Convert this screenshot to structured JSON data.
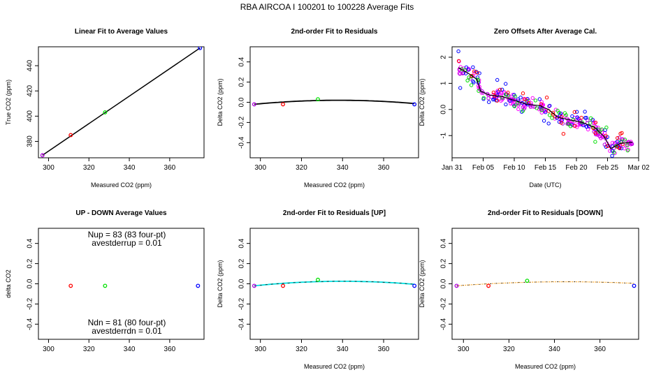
{
  "main_title": "RBA   AIRCOA I   100201 to 100228   Average Fits",
  "colors": {
    "purple": "#b000e0",
    "red": "#ff0000",
    "green": "#00e000",
    "blue": "#0000ff",
    "magenta": "#ff00ff",
    "cyan": "#00e0e0",
    "orange": "#ff9900",
    "black": "#000000"
  },
  "chart_data": [
    {
      "id": "p1",
      "type": "scatter",
      "title": "Linear Fit to Average Values",
      "xlabel": "Measured CO2 (ppm)",
      "ylabel": "True CO2 (ppm)",
      "xlim": [
        295,
        377
      ],
      "ylim": [
        367,
        455
      ],
      "xticks": [
        300,
        320,
        340,
        360
      ],
      "yticks": [
        380,
        400,
        420,
        440
      ],
      "points": [
        {
          "x": 297,
          "y": 369,
          "color": "#b000e0"
        },
        {
          "x": 311,
          "y": 385,
          "color": "#ff0000"
        },
        {
          "x": 328,
          "y": 403,
          "color": "#00e000"
        },
        {
          "x": 375,
          "y": 454,
          "color": "#0000ff"
        }
      ],
      "fit": {
        "type": "linear",
        "x": [
          297,
          375
        ],
        "y": [
          369,
          454
        ],
        "color": "#000000"
      }
    },
    {
      "id": "p2",
      "type": "scatter",
      "title": "2nd-order Fit to Residuals",
      "xlabel": "Measured CO2 (ppm)",
      "ylabel": "Delta CO2 (ppm)",
      "xlim": [
        295,
        377
      ],
      "ylim": [
        -0.55,
        0.55
      ],
      "xticks": [
        300,
        320,
        340,
        360
      ],
      "yticks": [
        -0.4,
        -0.2,
        0.0,
        0.2,
        0.4
      ],
      "points": [
        {
          "x": 297,
          "y": -0.02,
          "color": "#b000e0"
        },
        {
          "x": 311,
          "y": -0.02,
          "color": "#ff0000"
        },
        {
          "x": 328,
          "y": 0.03,
          "color": "#00e000"
        },
        {
          "x": 375,
          "y": -0.02,
          "color": "#0000ff"
        }
      ],
      "fit": {
        "type": "quadratic",
        "x_range": [
          297,
          375
        ],
        "vertex_x": 338,
        "vertex_y": 0.02,
        "end_y": -0.02,
        "color": "#000000"
      }
    },
    {
      "id": "p3",
      "type": "scatter",
      "title": "Zero Offsets After Average Cal.",
      "xlabel": "Date (UTC)",
      "ylabel": "Delta CO2 (ppm)",
      "xlim": [
        0,
        30
      ],
      "ylim": [
        -1.85,
        2.4
      ],
      "xticks": [
        0,
        5,
        10,
        15,
        20,
        25,
        30
      ],
      "xticklabels": [
        "Jan 31",
        "Feb 05",
        "Feb 10",
        "Feb 15",
        "Feb 20",
        "Feb 25",
        "Mar 02"
      ],
      "yticks": [
        -1,
        0,
        1,
        2
      ],
      "trend": [
        {
          "x": 1.0,
          "y": 1.6
        },
        {
          "x": 2.5,
          "y": 1.4
        },
        {
          "x": 4.0,
          "y": 1.15
        },
        {
          "x": 4.6,
          "y": 0.7
        },
        {
          "x": 6.0,
          "y": 0.55
        },
        {
          "x": 8.0,
          "y": 0.5
        },
        {
          "x": 10.0,
          "y": 0.35
        },
        {
          "x": 12.0,
          "y": 0.2
        },
        {
          "x": 14.0,
          "y": 0.15
        },
        {
          "x": 15.5,
          "y": 0.0
        },
        {
          "x": 17.0,
          "y": -0.3
        },
        {
          "x": 19.0,
          "y": -0.4
        },
        {
          "x": 21.0,
          "y": -0.5
        },
        {
          "x": 23.0,
          "y": -0.7
        },
        {
          "x": 24.5,
          "y": -1.05
        },
        {
          "x": 25.5,
          "y": -1.5
        },
        {
          "x": 27.0,
          "y": -1.3
        },
        {
          "x": 29.0,
          "y": -1.25
        }
      ],
      "series": [
        {
          "color": "#ff00ff",
          "offset": 0.0,
          "scatter": 0.12,
          "count": 150
        },
        {
          "color": "#b000e0",
          "offset": -0.05,
          "scatter": 0.1,
          "count": 60
        },
        {
          "color": "#0000ff",
          "offset": 0.03,
          "scatter": 0.22,
          "count": 70
        },
        {
          "color": "#00e000",
          "offset": -0.05,
          "scatter": 0.2,
          "count": 45
        },
        {
          "color": "#ff0000",
          "offset": 0.05,
          "scatter": 0.22,
          "count": 35
        }
      ]
    },
    {
      "id": "p4",
      "type": "scatter",
      "title": "UP - DOWN Average Values",
      "xlabel": "",
      "ylabel": "delta CO2",
      "xlim": [
        295,
        377
      ],
      "ylim": [
        -0.55,
        0.55
      ],
      "xticks": [
        300,
        320,
        340,
        360
      ],
      "yticks": [
        -0.4,
        -0.2,
        0.0,
        0.2,
        0.4
      ],
      "points": [
        {
          "x": 311,
          "y": -0.02,
          "color": "#ff0000"
        },
        {
          "x": 328,
          "y": -0.02,
          "color": "#00e000"
        },
        {
          "x": 374,
          "y": -0.02,
          "color": "#0000ff"
        }
      ],
      "annotations": {
        "top_line1": "Nup = 83 (83 four-pt)",
        "top_line2": "avestderrup =  0.01",
        "bottom_line1": "Ndn = 81 (80 four-pt)",
        "bottom_line2": "avestderrdn =  0.01"
      }
    },
    {
      "id": "p5",
      "type": "scatter",
      "title": "2nd-order Fit to Residuals [UP]",
      "xlabel": "Measured CO2 (ppm)",
      "ylabel": "Delta CO2 (ppm)",
      "xlim": [
        295,
        377
      ],
      "ylim": [
        -0.55,
        0.55
      ],
      "xticks": [
        300,
        320,
        340,
        360
      ],
      "yticks": [
        -0.4,
        -0.2,
        0.0,
        0.2,
        0.4
      ],
      "points": [
        {
          "x": 297,
          "y": -0.02,
          "color": "#b000e0"
        },
        {
          "x": 311,
          "y": -0.02,
          "color": "#ff0000"
        },
        {
          "x": 328,
          "y": 0.04,
          "color": "#00e000"
        },
        {
          "x": 375,
          "y": -0.02,
          "color": "#0000ff"
        }
      ],
      "fit": {
        "type": "quadratic",
        "x_range": [
          297,
          375
        ],
        "vertex_x": 340,
        "vertex_y": 0.025,
        "end_y": -0.02,
        "color": "#00e0e0",
        "overlay_color": "#000000"
      }
    },
    {
      "id": "p6",
      "type": "scatter",
      "title": "2nd-order Fit to Residuals [DOWN]",
      "xlabel": "Measured CO2 (ppm)",
      "ylabel": "Delta CO2 (ppm)",
      "xlim": [
        295,
        377
      ],
      "ylim": [
        -0.55,
        0.55
      ],
      "xticks": [
        300,
        320,
        340,
        360
      ],
      "yticks": [
        -0.4,
        -0.2,
        0.0,
        0.2,
        0.4
      ],
      "points": [
        {
          "x": 297,
          "y": -0.02,
          "color": "#b000e0"
        },
        {
          "x": 311,
          "y": -0.02,
          "color": "#ff0000"
        },
        {
          "x": 328,
          "y": 0.03,
          "color": "#00e000"
        },
        {
          "x": 375,
          "y": -0.02,
          "color": "#0000ff"
        }
      ],
      "fit": {
        "type": "quadratic",
        "x_range": [
          297,
          375
        ],
        "vertex_x": 345,
        "vertex_y": 0.02,
        "end_y": -0.02,
        "color": "#ff9900",
        "overlay_color": "#000000",
        "dotted": true
      }
    }
  ]
}
